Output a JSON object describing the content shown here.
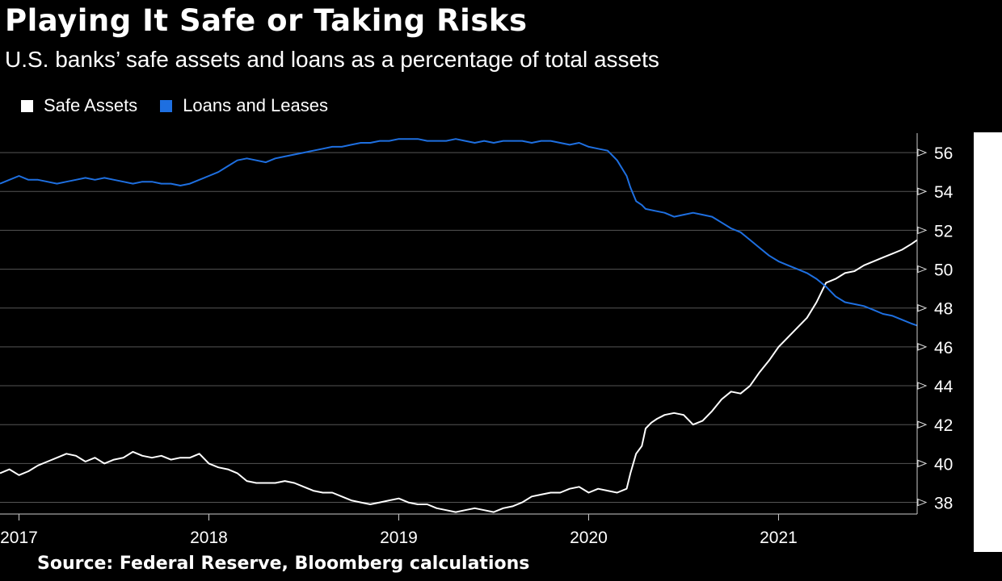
{
  "colors": {
    "background": "#000000",
    "text": "#ffffff",
    "gridline": "#555555",
    "safe_assets": "#ffffff",
    "loans_and_leases": "#1e6fe0"
  },
  "chart_data": {
    "type": "line",
    "title": "Playing It Safe or Taking Risks",
    "subtitle": "U.S. banks’ safe assets and loans as a percentage of total assets",
    "source": "Source: Federal Reserve, Bloomberg calculations",
    "xlabel": "",
    "ylabel": "",
    "xlim": [
      2016.9,
      2021.73
    ],
    "ylim": [
      37.4,
      57.0
    ],
    "y_ticks": [
      38,
      40,
      42,
      44,
      46,
      48,
      50,
      52,
      54,
      56
    ],
    "y_tick_labels": [
      "38",
      "40",
      "42",
      "44",
      "46",
      "48",
      "50",
      "52",
      "54",
      "56"
    ],
    "x_ticks": [
      2017,
      2018,
      2019,
      2020,
      2021
    ],
    "x_tick_labels": [
      "2017",
      "2018",
      "2019",
      "2020",
      "2021"
    ],
    "grid": true,
    "legend_position": "top-left",
    "series": [
      {
        "name": "Safe Assets",
        "color": "#ffffff",
        "x": [
          2016.9,
          2016.95,
          2017.0,
          2017.05,
          2017.1,
          2017.15,
          2017.2,
          2017.25,
          2017.3,
          2017.35,
          2017.4,
          2017.45,
          2017.5,
          2017.55,
          2017.6,
          2017.65,
          2017.7,
          2017.75,
          2017.8,
          2017.85,
          2017.9,
          2017.95,
          2018.0,
          2018.05,
          2018.1,
          2018.15,
          2018.2,
          2018.25,
          2018.3,
          2018.35,
          2018.4,
          2018.45,
          2018.5,
          2018.55,
          2018.6,
          2018.65,
          2018.7,
          2018.75,
          2018.8,
          2018.85,
          2018.9,
          2018.95,
          2019.0,
          2019.05,
          2019.1,
          2019.15,
          2019.2,
          2019.25,
          2019.3,
          2019.35,
          2019.4,
          2019.45,
          2019.5,
          2019.55,
          2019.6,
          2019.65,
          2019.7,
          2019.75,
          2019.8,
          2019.85,
          2019.9,
          2019.95,
          2020.0,
          2020.05,
          2020.1,
          2020.15,
          2020.2,
          2020.22,
          2020.25,
          2020.28,
          2020.3,
          2020.33,
          2020.36,
          2020.4,
          2020.45,
          2020.5,
          2020.55,
          2020.6,
          2020.65,
          2020.7,
          2020.75,
          2020.8,
          2020.85,
          2020.9,
          2020.95,
          2021.0,
          2021.05,
          2021.1,
          2021.15,
          2021.2,
          2021.25,
          2021.3,
          2021.35,
          2021.4,
          2021.45,
          2021.5,
          2021.55,
          2021.6,
          2021.65,
          2021.7,
          2021.73
        ],
        "values": [
          39.5,
          39.7,
          39.4,
          39.6,
          39.9,
          40.1,
          40.3,
          40.5,
          40.4,
          40.1,
          40.3,
          40.0,
          40.2,
          40.3,
          40.6,
          40.4,
          40.3,
          40.4,
          40.2,
          40.3,
          40.3,
          40.5,
          40.0,
          39.8,
          39.7,
          39.5,
          39.1,
          39.0,
          39.0,
          39.0,
          39.1,
          39.0,
          38.8,
          38.6,
          38.5,
          38.5,
          38.3,
          38.1,
          38.0,
          37.9,
          38.0,
          38.1,
          38.2,
          38.0,
          37.9,
          37.9,
          37.7,
          37.6,
          37.5,
          37.6,
          37.7,
          37.6,
          37.5,
          37.7,
          37.8,
          38.0,
          38.3,
          38.4,
          38.5,
          38.5,
          38.7,
          38.8,
          38.5,
          38.7,
          38.6,
          38.5,
          38.7,
          39.5,
          40.5,
          40.9,
          41.8,
          42.1,
          42.3,
          42.5,
          42.6,
          42.5,
          42.0,
          42.2,
          42.7,
          43.3,
          43.7,
          43.6,
          44.0,
          44.7,
          45.3,
          46.0,
          46.5,
          47.0,
          47.5,
          48.3,
          49.3,
          49.5,
          49.8,
          49.9,
          50.2,
          50.4,
          50.6,
          50.8,
          51.0,
          51.3,
          51.5
        ]
      },
      {
        "name": "Loans and Leases",
        "color": "#1e6fe0",
        "x": [
          2016.9,
          2016.95,
          2017.0,
          2017.05,
          2017.1,
          2017.15,
          2017.2,
          2017.25,
          2017.3,
          2017.35,
          2017.4,
          2017.45,
          2017.5,
          2017.55,
          2017.6,
          2017.65,
          2017.7,
          2017.75,
          2017.8,
          2017.85,
          2017.9,
          2017.95,
          2018.0,
          2018.05,
          2018.1,
          2018.15,
          2018.2,
          2018.25,
          2018.3,
          2018.35,
          2018.4,
          2018.45,
          2018.5,
          2018.55,
          2018.6,
          2018.65,
          2018.7,
          2018.75,
          2018.8,
          2018.85,
          2018.9,
          2018.95,
          2019.0,
          2019.05,
          2019.1,
          2019.15,
          2019.2,
          2019.25,
          2019.3,
          2019.35,
          2019.4,
          2019.45,
          2019.5,
          2019.55,
          2019.6,
          2019.65,
          2019.7,
          2019.75,
          2019.8,
          2019.85,
          2019.9,
          2019.95,
          2020.0,
          2020.05,
          2020.1,
          2020.15,
          2020.2,
          2020.22,
          2020.25,
          2020.28,
          2020.3,
          2020.35,
          2020.4,
          2020.45,
          2020.5,
          2020.55,
          2020.6,
          2020.65,
          2020.7,
          2020.75,
          2020.8,
          2020.85,
          2020.9,
          2020.95,
          2021.0,
          2021.05,
          2021.1,
          2021.15,
          2021.2,
          2021.25,
          2021.3,
          2021.35,
          2021.4,
          2021.45,
          2021.5,
          2021.55,
          2021.6,
          2021.65,
          2021.7,
          2021.73
        ],
        "values": [
          54.4,
          54.6,
          54.8,
          54.6,
          54.6,
          54.5,
          54.4,
          54.5,
          54.6,
          54.7,
          54.6,
          54.7,
          54.6,
          54.5,
          54.4,
          54.5,
          54.5,
          54.4,
          54.4,
          54.3,
          54.4,
          54.6,
          54.8,
          55.0,
          55.3,
          55.6,
          55.7,
          55.6,
          55.5,
          55.7,
          55.8,
          55.9,
          56.0,
          56.1,
          56.2,
          56.3,
          56.3,
          56.4,
          56.5,
          56.5,
          56.6,
          56.6,
          56.7,
          56.7,
          56.7,
          56.6,
          56.6,
          56.6,
          56.7,
          56.6,
          56.5,
          56.6,
          56.5,
          56.6,
          56.6,
          56.6,
          56.5,
          56.6,
          56.6,
          56.5,
          56.4,
          56.5,
          56.3,
          56.2,
          56.1,
          55.6,
          54.8,
          54.2,
          53.5,
          53.3,
          53.1,
          53.0,
          52.9,
          52.7,
          52.8,
          52.9,
          52.8,
          52.7,
          52.4,
          52.1,
          51.9,
          51.5,
          51.1,
          50.7,
          50.4,
          50.2,
          50.0,
          49.8,
          49.5,
          49.1,
          48.6,
          48.3,
          48.2,
          48.1,
          47.9,
          47.7,
          47.6,
          47.4,
          47.2,
          47.1
        ]
      }
    ]
  }
}
